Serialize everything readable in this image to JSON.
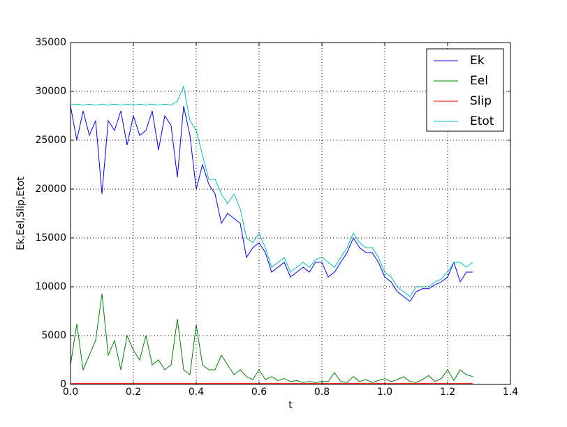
{
  "chart_data": {
    "type": "line",
    "x_label": "t",
    "y_label": "Ek,Eel,Slip,Etot",
    "x": [
      0,
      0.02,
      0.04,
      0.06,
      0.08,
      0.1,
      0.12,
      0.14,
      0.16,
      0.18,
      0.2,
      0.22,
      0.24,
      0.26,
      0.28,
      0.3,
      0.32,
      0.34,
      0.36,
      0.38,
      0.4,
      0.42,
      0.44,
      0.46,
      0.48,
      0.5,
      0.52,
      0.54,
      0.56,
      0.58,
      0.6,
      0.62,
      0.64,
      0.66,
      0.68,
      0.7,
      0.72,
      0.74,
      0.76,
      0.78,
      0.8,
      0.82,
      0.84,
      0.86,
      0.88,
      0.9,
      0.92,
      0.94,
      0.96,
      0.98,
      1.0,
      1.02,
      1.04,
      1.06,
      1.08,
      1.1,
      1.12,
      1.14,
      1.16,
      1.18,
      1.2,
      1.22,
      1.24,
      1.26,
      1.28
    ],
    "series": [
      {
        "name": "Ek",
        "color": "#0000ff",
        "values": [
          28500,
          25000,
          28000,
          25500,
          27000,
          19500,
          27000,
          26000,
          28000,
          24500,
          27500,
          25500,
          26000,
          28000,
          24000,
          27500,
          26500,
          21200,
          28500,
          25500,
          20000,
          22500,
          20500,
          19500,
          16500,
          17500,
          17000,
          16500,
          13000,
          14000,
          14500,
          13500,
          11500,
          12000,
          12500,
          11000,
          11500,
          12000,
          11500,
          12500,
          12500,
          11000,
          11500,
          12500,
          13500,
          15000,
          14000,
          13500,
          13500,
          12500,
          11000,
          10500,
          9500,
          9000,
          8500,
          9500,
          9800,
          9800,
          10200,
          10500,
          11000,
          12500,
          10500,
          11500,
          11500
        ]
      },
      {
        "name": "Eel",
        "color": "#008000",
        "values": [
          2000,
          6200,
          1500,
          3000,
          4500,
          9300,
          3000,
          4500,
          1500,
          5000,
          3500,
          2500,
          5000,
          2000,
          2500,
          1500,
          2000,
          6700,
          1500,
          1000,
          6100,
          2000,
          1500,
          1500,
          3000,
          2000,
          1000,
          1500,
          800,
          500,
          1500,
          500,
          800,
          400,
          600,
          300,
          400,
          200,
          300,
          200,
          300,
          300,
          1200,
          300,
          200,
          800,
          300,
          500,
          200,
          400,
          600,
          300,
          500,
          800,
          300,
          200,
          500,
          900,
          300,
          600,
          1500,
          400,
          1500,
          1000,
          800
        ]
      },
      {
        "name": "Slip",
        "color": "#ff0000",
        "values": [
          100,
          100,
          100,
          100,
          100,
          100,
          100,
          100,
          100,
          100,
          100,
          100,
          100,
          100,
          100,
          100,
          100,
          100,
          100,
          100,
          100,
          100,
          100,
          100,
          100,
          100,
          100,
          100,
          100,
          100,
          100,
          100,
          100,
          100,
          100,
          100,
          100,
          100,
          100,
          100,
          100,
          100,
          100,
          100,
          100,
          100,
          100,
          100,
          100,
          100,
          100,
          100,
          100,
          100,
          100,
          100,
          100,
          100,
          100,
          100,
          100,
          100,
          100,
          100,
          100
        ]
      },
      {
        "name": "Etot",
        "color": "#00bfbf",
        "values": [
          28600,
          28700,
          28600,
          28700,
          28600,
          28700,
          28600,
          28700,
          28600,
          28700,
          28600,
          28700,
          28600,
          28700,
          28600,
          28700,
          28600,
          29000,
          30500,
          27000,
          26000,
          23500,
          21000,
          21000,
          19500,
          18500,
          19500,
          18000,
          15000,
          14500,
          15500,
          14000,
          12000,
          12500,
          13000,
          11500,
          12000,
          12500,
          12000,
          12800,
          13000,
          12500,
          12000,
          13000,
          14000,
          15500,
          14500,
          14000,
          14000,
          13000,
          11500,
          11000,
          10000,
          9500,
          9000,
          10000,
          10000,
          10000,
          10500,
          10800,
          11500,
          12500,
          12500,
          12000,
          12500
        ]
      }
    ],
    "xlim": [
      0,
      1.4
    ],
    "xticks": [
      {
        "value": 0,
        "label": "0.0"
      },
      0.2,
      0.4,
      0.6,
      0.8,
      {
        "value": 1,
        "label": "1.0"
      },
      1.2,
      1.4
    ],
    "ylim": [
      0,
      35000
    ],
    "yticks": [
      0,
      5000,
      10000,
      15000,
      20000,
      25000,
      30000,
      35000
    ],
    "grid": true,
    "legend": "upper right"
  }
}
